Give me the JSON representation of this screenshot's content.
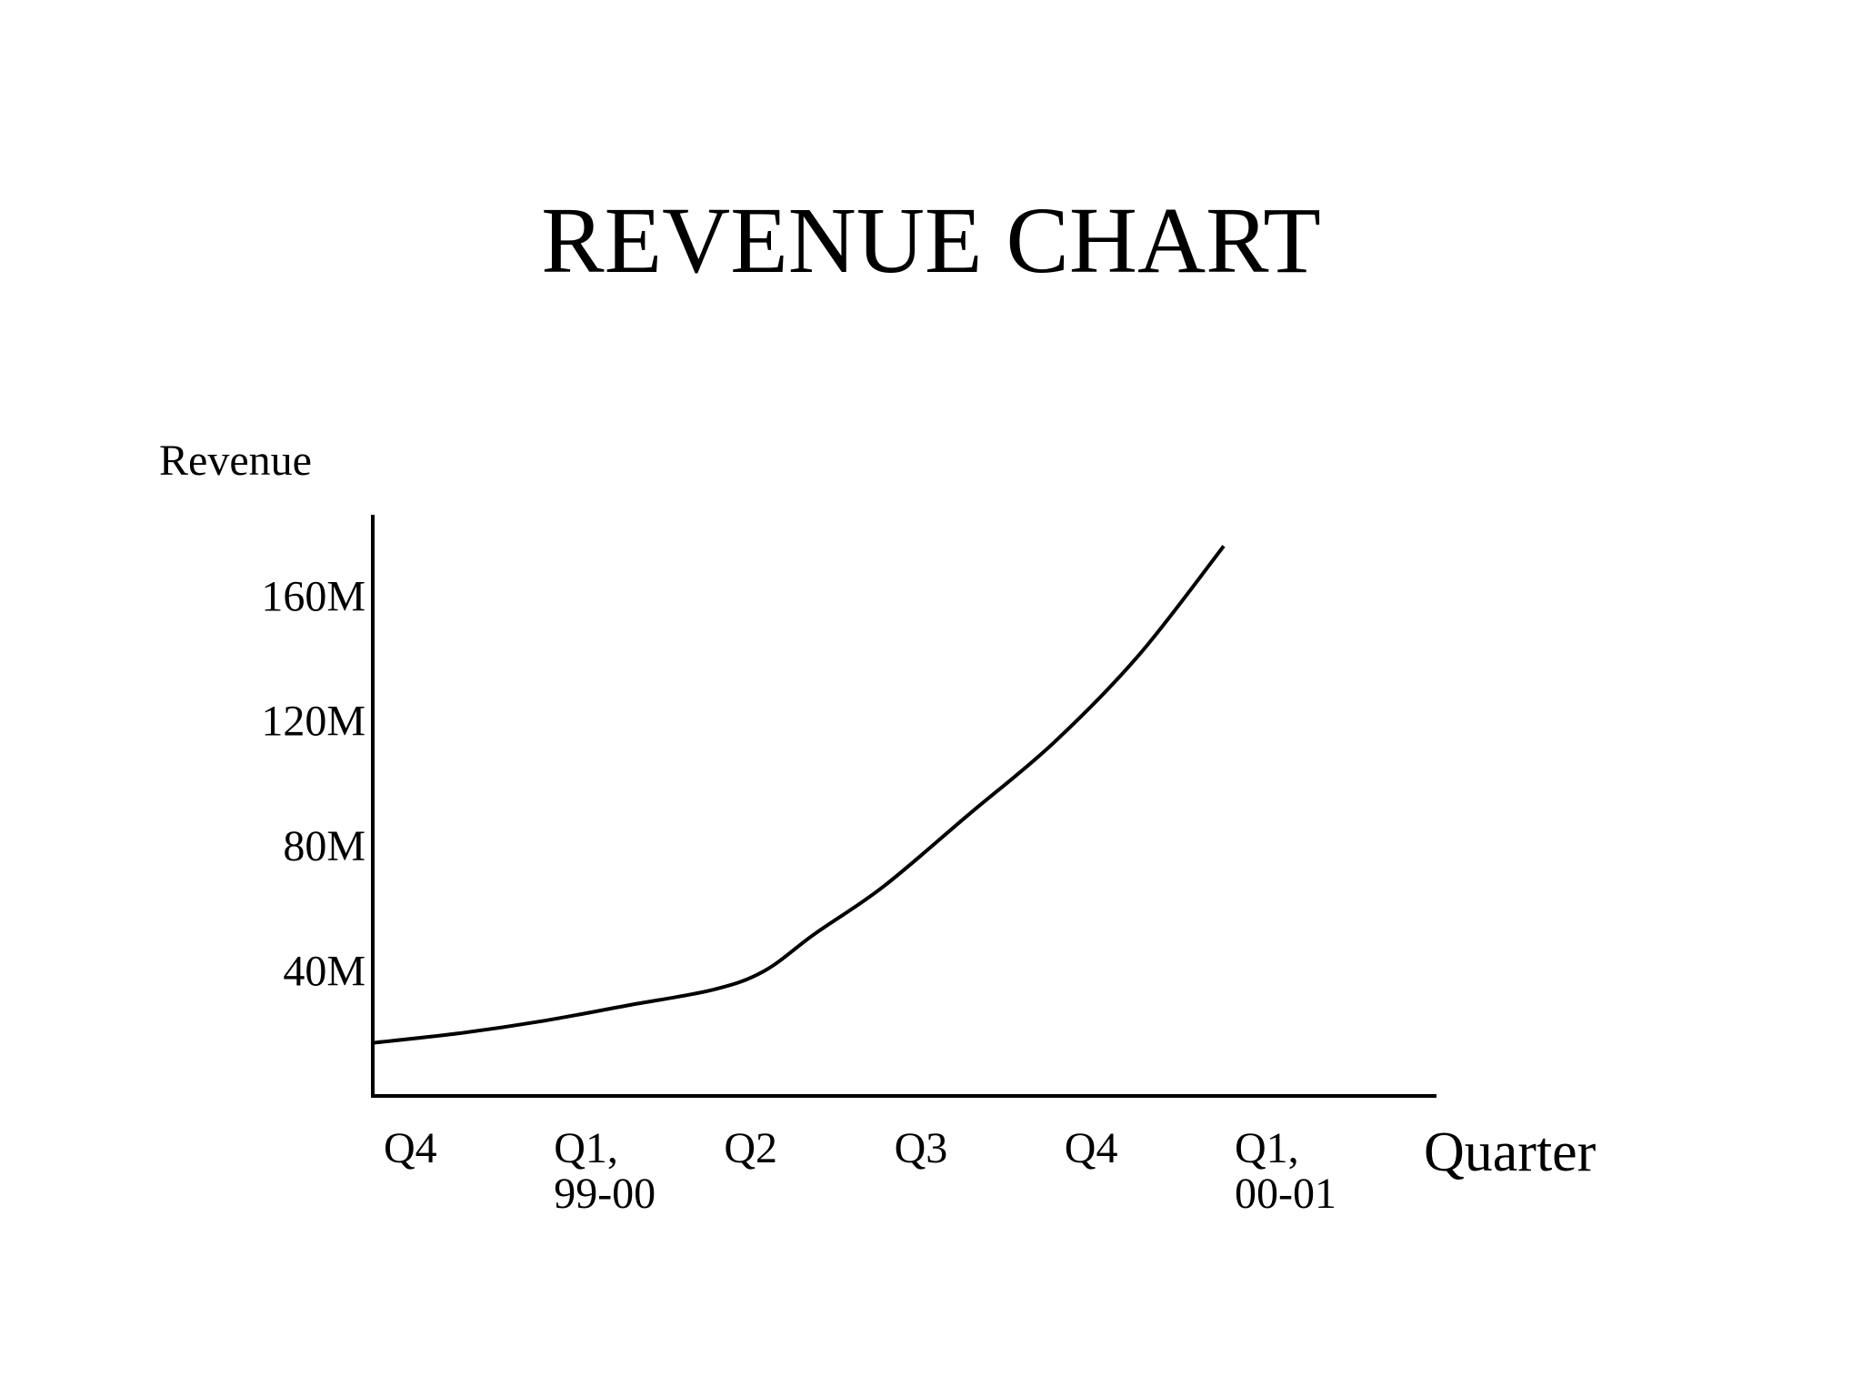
{
  "chart_data": {
    "type": "line",
    "title": "REVENUE CHART",
    "xlabel": "Quarter",
    "ylabel": "Revenue",
    "categories": [
      [
        "Q4"
      ],
      [
        "Q1,",
        "99-00"
      ],
      [
        "Q2"
      ],
      [
        "Q3"
      ],
      [
        "Q4"
      ],
      [
        "Q1,",
        "00-01"
      ]
    ],
    "yticks": [
      {
        "value": 40,
        "label": "40M"
      },
      {
        "value": 80,
        "label": "80M"
      },
      {
        "value": 120,
        "label": "120M"
      },
      {
        "value": 160,
        "label": "160M"
      }
    ],
    "ylim": [
      0,
      186
    ],
    "xlim": [
      0,
      6.25
    ],
    "grid": false,
    "legend": "none",
    "series": [
      {
        "x": [
          0,
          0.5,
          1,
          1.5,
          2,
          2.3,
          2.6,
          3.0,
          3.5,
          4.0,
          4.5,
          5.0
        ],
        "values": [
          17,
          20,
          24,
          29,
          34,
          40,
          52,
          67,
          90,
          113,
          141,
          176
        ]
      }
    ]
  }
}
